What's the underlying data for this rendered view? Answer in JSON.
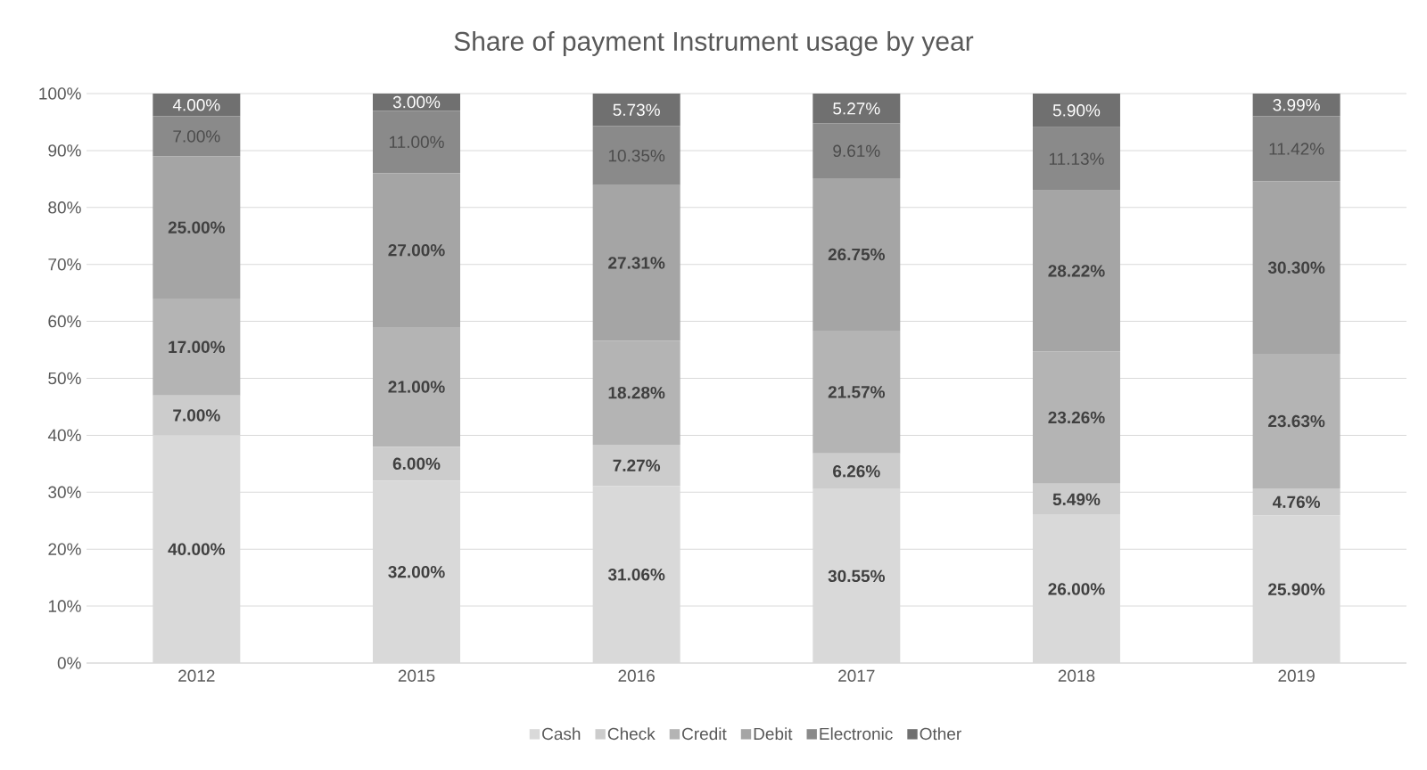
{
  "chart_data": {
    "type": "bar",
    "title": "Share of payment Instrument usage by year",
    "stacked": true,
    "categories": [
      "2012",
      "2015",
      "2016",
      "2017",
      "2018",
      "2019"
    ],
    "series": [
      {
        "name": "Cash",
        "color": "#d9d9d9",
        "values": [
          40.0,
          32.0,
          31.06,
          30.55,
          26.0,
          25.9
        ],
        "value_labels": [
          "40.00%",
          "32.00%",
          "31.06%",
          "30.55%",
          "26.00%",
          "25.90%"
        ]
      },
      {
        "name": "Check",
        "color": "#cccccc",
        "values": [
          7.0,
          6.0,
          7.27,
          6.26,
          5.49,
          4.76
        ],
        "value_labels": [
          "7.00%",
          "6.00%",
          "7.27%",
          "6.26%",
          "5.49%",
          "4.76%"
        ]
      },
      {
        "name": "Credit",
        "color": "#b4b4b4",
        "values": [
          17.0,
          21.0,
          18.28,
          21.57,
          23.26,
          23.63
        ],
        "value_labels": [
          "17.00%",
          "21.00%",
          "18.28%",
          "21.57%",
          "23.26%",
          "23.63%"
        ]
      },
      {
        "name": "Debit",
        "color": "#a5a5a5",
        "values": [
          25.0,
          27.0,
          27.31,
          26.75,
          28.22,
          30.3
        ],
        "value_labels": [
          "25.00%",
          "27.00%",
          "27.31%",
          "26.75%",
          "28.22%",
          "30.30%"
        ]
      },
      {
        "name": "Electronic",
        "color": "#8a8a8a",
        "values": [
          7.0,
          11.0,
          10.35,
          9.61,
          11.13,
          11.42
        ],
        "value_labels": [
          "7.00%",
          "11.00%",
          "10.35%",
          "9.61%",
          "11.13%",
          "11.42%"
        ]
      },
      {
        "name": "Other",
        "color": "#707070",
        "values": [
          4.0,
          3.0,
          5.73,
          5.27,
          5.9,
          3.99
        ],
        "value_labels": [
          "4.00%",
          "3.00%",
          "5.73%",
          "5.27%",
          "5.90%",
          "3.99%"
        ]
      }
    ],
    "ylim": [
      0,
      100
    ],
    "yticks": [
      {
        "value": 0,
        "label": "0%"
      },
      {
        "value": 10,
        "label": "10%"
      },
      {
        "value": 20,
        "label": "20%"
      },
      {
        "value": 30,
        "label": "30%"
      },
      {
        "value": 40,
        "label": "40%"
      },
      {
        "value": 50,
        "label": "50%"
      },
      {
        "value": 60,
        "label": "60%"
      },
      {
        "value": 70,
        "label": "70%"
      },
      {
        "value": 80,
        "label": "80%"
      },
      {
        "value": 90,
        "label": "90%"
      },
      {
        "value": 100,
        "label": "100%"
      }
    ],
    "grid": "y",
    "legend": "bottom"
  }
}
